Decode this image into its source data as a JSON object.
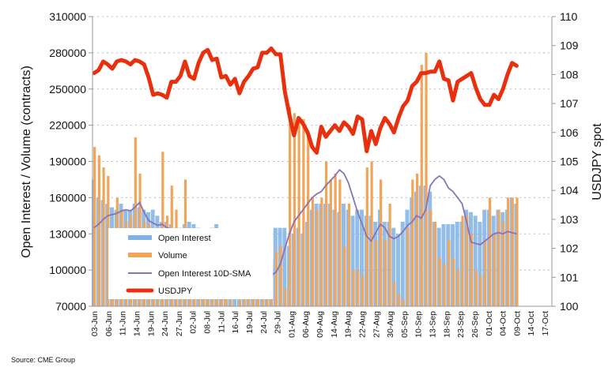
{
  "chart_data": {
    "type": "bar+line",
    "title": "",
    "ylabel_left": "Open Interest / Volume (contracts)",
    "ylabel_right": "USDJPY spot",
    "ylim_left": [
      70000,
      310000
    ],
    "yticks_left": [
      "70000",
      "100000",
      "130000",
      "160000",
      "190000",
      "220000",
      "250000",
      "280000",
      "310000"
    ],
    "ylim_right": [
      100,
      110
    ],
    "yticks_right": [
      "100",
      "101",
      "102",
      "103",
      "104",
      "105",
      "106",
      "107",
      "108",
      "109",
      "110"
    ],
    "x_tick_labels": [
      "03-Jun",
      "06-Jun",
      "11-Jun",
      "14-Jun",
      "19-Jun",
      "24-Jun",
      "27-Jun",
      "02-Jul",
      "08-Jul",
      "11-Jul",
      "16-Jul",
      "19-Jul",
      "24-Jul",
      "29-Jul",
      "01-Aug",
      "06-Aug",
      "09-Aug",
      "14-Aug",
      "19-Aug",
      "22-Aug",
      "27-Aug",
      "30-Aug",
      "05-Sep",
      "10-Sep",
      "13-Sep",
      "18-Sep",
      "23-Sep",
      "26-Sep",
      "01-Oct",
      "04-Oct",
      "09-Oct",
      "14-Oct",
      "17-Oct"
    ],
    "grid": true,
    "legend_position": "bottom-left",
    "source": "Source: CME Group",
    "series": [
      {
        "name": "Open Interest",
        "type": "bar",
        "axis": "left",
        "color": "#7fb2e5",
        "values": [
          175000,
          160000,
          158000,
          155000,
          152000,
          150000,
          155000,
          150000,
          150000,
          155000,
          152000,
          150000,
          148000,
          150000,
          145000,
          140000,
          140000,
          138000,
          135000,
          135000,
          138000,
          140000,
          138000,
          135000,
          132000,
          130000,
          135000,
          138000,
          132000,
          132000,
          130000,
          130000,
          125000,
          120000,
          125000,
          130000,
          132000,
          130000,
          125000,
          130000,
          135000,
          135000,
          135000,
          120000,
          130000,
          135000,
          130000,
          140000,
          150000,
          155000,
          155000,
          155000,
          155000,
          150000,
          148000,
          155000,
          150000,
          145000,
          150000,
          150000,
          145000,
          145000,
          140000,
          150000,
          140000,
          140000,
          135000,
          130000,
          140000,
          150000,
          160000,
          165000,
          170000,
          170000,
          165000,
          140000,
          135000,
          138000,
          138000,
          138000,
          140000,
          140000,
          150000,
          148000,
          145000,
          140000,
          150000,
          150000,
          145000,
          150000,
          148000,
          150000,
          160000,
          155000
        ]
      },
      {
        "name": "Volume",
        "type": "bar",
        "axis": "left",
        "color": "#f0a55a",
        "values": [
          202000,
          195000,
          185000,
          178000,
          120000,
          160000,
          150000,
          140000,
          145000,
          210000,
          180000,
          140000,
          138000,
          120000,
          108000,
          198000,
          145000,
          170000,
          150000,
          130000,
          175000,
          105000,
          110000,
          100000,
          95000,
          90000,
          85000,
          80000,
          95000,
          85000,
          75000,
          70000,
          75000,
          80000,
          85000,
          95000,
          90000,
          100000,
          100000,
          110000,
          115000,
          120000,
          85000,
          235000,
          230000,
          225000,
          225000,
          215000,
          160000,
          150000,
          160000,
          190000,
          175000,
          180000,
          175000,
          120000,
          155000,
          100000,
          100000,
          95000,
          185000,
          190000,
          125000,
          175000,
          125000,
          155000,
          90000,
          80000,
          75000,
          135000,
          175000,
          180000,
          270000,
          280000,
          150000,
          140000,
          110000,
          105000,
          125000,
          110000,
          100000,
          145000,
          145000,
          130000,
          100000,
          95000,
          125000,
          160000,
          130000,
          150000,
          140000,
          160000,
          160000,
          160000
        ]
      },
      {
        "name": "Open Interest 10D-SMA",
        "type": "line",
        "axis": "left",
        "color": "#8a72b8",
        "values": [
          135000,
          138000,
          142000,
          145000,
          146000,
          147000,
          149000,
          150000,
          149000,
          152000,
          156000,
          148000,
          141000,
          139000,
          137000,
          138000,
          135000,
          134000,
          131000,
          129000,
          127000,
          124000,
          122000,
          126000,
          122000,
          118000,
          115000,
          113000,
          110000,
          108000,
          104000,
          101000,
          98000,
          96000,
          95000,
          95000,
          95000,
          94000,
          95000,
          96000,
          98000,
          105000,
          118000,
          130000,
          140000,
          145000,
          150000,
          155000,
          160000,
          163000,
          165000,
          170000,
          174000,
          178000,
          183000,
          180000,
          172000,
          160000,
          148000,
          138000,
          128000,
          124000,
          131000,
          138000,
          135000,
          128000,
          126000,
          128000,
          132000,
          137000,
          140000,
          145000,
          143000,
          150000,
          170000,
          175000,
          178000,
          175000,
          168000,
          165000,
          160000,
          155000,
          140000,
          123000,
          122000,
          121000,
          124000,
          127000,
          130000,
          131000,
          130000,
          132000,
          131000,
          130000
        ]
      },
      {
        "name": "USDJPY",
        "type": "line",
        "axis": "right",
        "color": "#e8300e",
        "values": [
          108.05,
          108.15,
          108.45,
          108.35,
          108.2,
          108.45,
          108.5,
          108.45,
          108.35,
          108.5,
          108.45,
          108.35,
          107.9,
          107.3,
          107.35,
          107.3,
          107.2,
          107.75,
          107.75,
          107.95,
          108.45,
          107.95,
          107.85,
          108.4,
          108.75,
          108.85,
          108.5,
          108.55,
          107.9,
          107.95,
          107.65,
          107.85,
          107.35,
          107.75,
          107.95,
          108.2,
          108.25,
          108.75,
          108.75,
          108.9,
          108.7,
          108.7,
          107.4,
          106.6,
          105.9,
          106.5,
          106.3,
          106.0,
          105.5,
          105.3,
          106.2,
          105.85,
          106.05,
          106.25,
          106.05,
          106.35,
          106.2,
          105.95,
          106.55,
          106.45,
          105.35,
          106.05,
          105.6,
          106.15,
          106.5,
          106.3,
          106.0,
          106.5,
          106.9,
          107.1,
          107.6,
          107.75,
          108.05,
          108.05,
          108.1,
          108.1,
          108.45,
          107.85,
          107.8,
          107.1,
          107.75,
          107.85,
          107.95,
          108.05,
          107.55,
          107.15,
          106.95,
          106.95,
          107.3,
          107.15,
          107.5,
          108.0,
          108.4,
          108.3
        ]
      }
    ]
  }
}
